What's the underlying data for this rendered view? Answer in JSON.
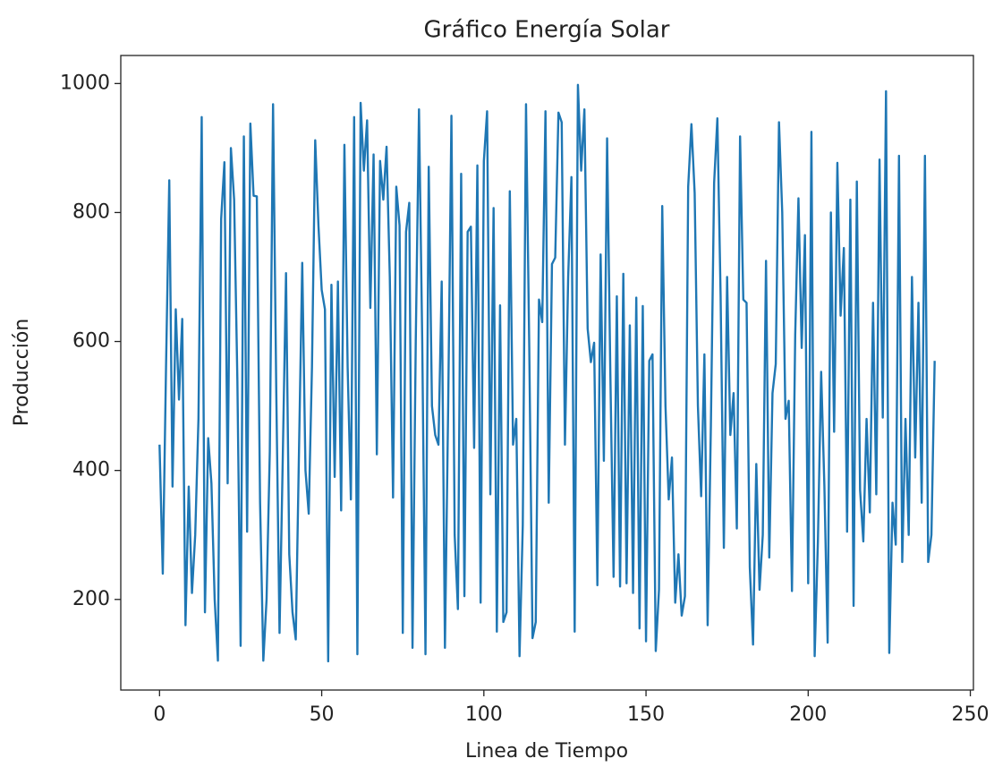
{
  "chart_data": {
    "type": "line",
    "title": "Gráfico Energía Solar",
    "xlabel": "Linea de Tiempo",
    "ylabel": "Producción",
    "x": [
      0,
      1,
      2,
      3,
      4,
      5,
      6,
      7,
      8,
      9,
      10,
      11,
      12,
      13,
      14,
      15,
      16,
      17,
      18,
      19,
      20,
      21,
      22,
      23,
      24,
      25,
      26,
      27,
      28,
      29,
      30,
      31,
      32,
      33,
      34,
      35,
      36,
      37,
      38,
      39,
      40,
      41,
      42,
      43,
      44,
      45,
      46,
      47,
      48,
      49,
      50,
      51,
      52,
      53,
      54,
      55,
      56,
      57,
      58,
      59,
      60,
      61,
      62,
      63,
      64,
      65,
      66,
      67,
      68,
      69,
      70,
      71,
      72,
      73,
      74,
      75,
      76,
      77,
      78,
      79,
      80,
      81,
      82,
      83,
      84,
      85,
      86,
      87,
      88,
      89,
      90,
      91,
      92,
      93,
      94,
      95,
      96,
      97,
      98,
      99,
      100,
      101,
      102,
      103,
      104,
      105,
      106,
      107,
      108,
      109,
      110,
      111,
      112,
      113,
      114,
      115,
      116,
      117,
      118,
      119,
      120,
      121,
      122,
      123,
      124,
      125,
      126,
      127,
      128,
      129,
      130,
      131,
      132,
      133,
      134,
      135,
      136,
      137,
      138,
      139,
      140,
      141,
      142,
      143,
      144,
      145,
      146,
      147,
      148,
      149,
      150,
      151,
      152,
      153,
      154,
      155,
      156,
      157,
      158,
      159,
      160,
      161,
      162,
      163,
      164,
      165,
      166,
      167,
      168,
      169,
      170,
      171,
      172,
      173,
      174,
      175,
      176,
      177,
      178,
      179,
      180,
      181,
      182,
      183,
      184,
      185,
      186,
      187,
      188,
      189,
      190,
      191,
      192,
      193,
      194,
      195,
      196,
      197,
      198,
      199,
      200,
      201,
      202,
      203,
      204,
      205,
      206,
      207,
      208,
      209,
      210,
      211,
      212,
      213,
      214,
      215,
      216,
      217,
      218,
      219,
      220,
      221,
      222,
      223,
      224,
      225,
      226,
      227,
      228,
      229,
      230,
      231,
      232,
      233,
      234,
      235,
      236,
      237,
      238,
      239
    ],
    "series": [
      {
        "name": "Producción",
        "color": "#1f77b4",
        "values": [
          440,
          240,
          560,
          850,
          375,
          650,
          510,
          635,
          160,
          375,
          210,
          300,
          480,
          948,
          180,
          450,
          380,
          200,
          105,
          790,
          878,
          380,
          900,
          820,
          540,
          128,
          918,
          305,
          938,
          826,
          825,
          350,
          105,
          200,
          430,
          968,
          520,
          148,
          420,
          706,
          270,
          180,
          138,
          430,
          722,
          400,
          333,
          560,
          912,
          780,
          680,
          650,
          104,
          688,
          390,
          693,
          338,
          905,
          560,
          355,
          948,
          115,
          970,
          865,
          943,
          652,
          890,
          425,
          880,
          820,
          902,
          700,
          358,
          840,
          780,
          148,
          770,
          815,
          125,
          600,
          960,
          600,
          115,
          871,
          500,
          455,
          440,
          693,
          125,
          500,
          950,
          300,
          185,
          860,
          205,
          770,
          778,
          435,
          873,
          195,
          880,
          957,
          363,
          807,
          150,
          656,
          165,
          180,
          833,
          440,
          480,
          112,
          315,
          968,
          590,
          140,
          165,
          665,
          630,
          957,
          350,
          720,
          730,
          955,
          940,
          440,
          700,
          855,
          150,
          998,
          865,
          960,
          620,
          568,
          598,
          222,
          735,
          415,
          915,
          550,
          235,
          670,
          220,
          705,
          225,
          625,
          210,
          668,
          155,
          655,
          135,
          570,
          580,
          120,
          215,
          810,
          500,
          355,
          420,
          195,
          270,
          175,
          205,
          840,
          937,
          830,
          500,
          360,
          580,
          160,
          470,
          846,
          946,
          670,
          280,
          700,
          455,
          520,
          310,
          918,
          665,
          660,
          250,
          130,
          410,
          215,
          300,
          725,
          265,
          520,
          565,
          940,
          800,
          480,
          508,
          213,
          610,
          822,
          590,
          765,
          225,
          925,
          112,
          290,
          553,
          375,
          133,
          800,
          460,
          877,
          640,
          745,
          305,
          820,
          190,
          848,
          370,
          290,
          480,
          335,
          660,
          363,
          882,
          482,
          988,
          117,
          350,
          285,
          888,
          258,
          480,
          300,
          700,
          420,
          660,
          350,
          888,
          258,
          300,
          570
        ]
      }
    ],
    "xlim": [
      -11.95,
      250.95
    ],
    "xticks": [
      0,
      50,
      100,
      150,
      200,
      250
    ],
    "ylim": [
      59.5,
      1043.5
    ],
    "yticks": [
      200,
      400,
      600,
      800,
      1000
    ]
  }
}
